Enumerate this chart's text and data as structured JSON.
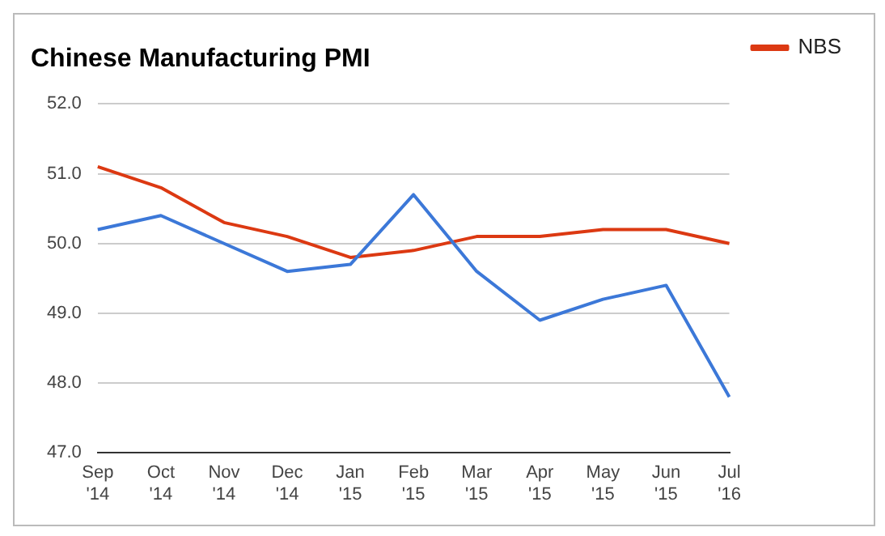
{
  "chart_data": {
    "type": "line",
    "title": "Chinese Manufacturing PMI",
    "categories": [
      "Sep '14",
      "Oct '14",
      "Nov '14",
      "Dec '14",
      "Jan '15",
      "Feb '15",
      "Mar '15",
      "Apr '15",
      "May '15",
      "Jun '15",
      "Jul '16"
    ],
    "series": [
      {
        "color": "#3c78d8",
        "values": [
          50.2,
          50.4,
          50.0,
          49.6,
          49.7,
          50.7,
          49.6,
          48.9,
          49.2,
          49.4,
          47.8
        ]
      },
      {
        "name": "NBS",
        "color": "#dc3912",
        "values": [
          51.1,
          50.8,
          50.3,
          50.1,
          49.8,
          49.9,
          50.1,
          50.1,
          50.2,
          50.2,
          50.0
        ]
      }
    ],
    "ylim": [
      47,
      52
    ],
    "yticks": [
      {
        "value": 47,
        "label": "47.0"
      },
      {
        "value": 48,
        "label": "48.0"
      },
      {
        "value": 49,
        "label": "49.0"
      },
      {
        "value": 50,
        "label": "50.0"
      },
      {
        "value": 51,
        "label": "51.0"
      },
      {
        "value": 52,
        "label": "52.0"
      }
    ],
    "grid": "y",
    "legend": "right",
    "marker": "none",
    "line_style": "solid"
  }
}
